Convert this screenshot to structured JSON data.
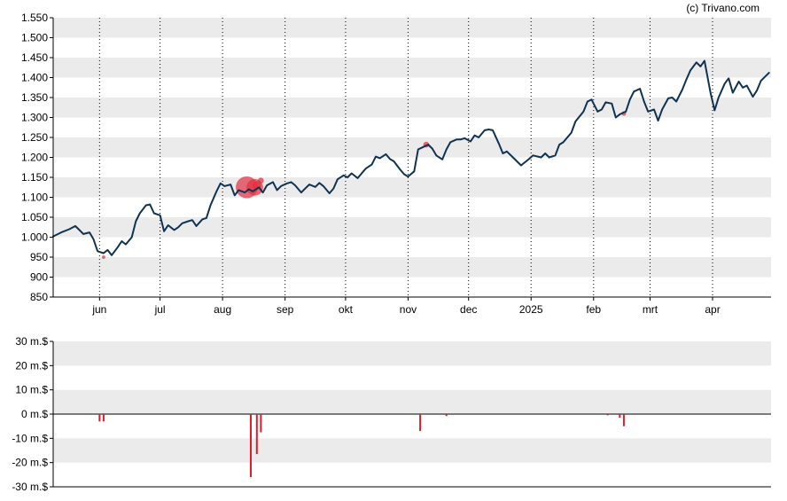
{
  "credit": "(c) Trivano.com",
  "colors": {
    "band": "#ebebeb",
    "line": "#0f3350",
    "marker": "#e03040",
    "bar": "#e01b2a",
    "axis": "#000000"
  },
  "chart_data": [
    {
      "type": "line",
      "ylim": [
        850,
        1550
      ],
      "ytick_values": [
        850,
        900,
        950,
        1000,
        1050,
        1100,
        1150,
        1200,
        1250,
        1300,
        1350,
        1400,
        1450,
        1500,
        1550
      ],
      "ytick_labels": [
        "850",
        "900",
        "950",
        "1.000",
        "1.050",
        "1.100",
        "1.150",
        "1.200",
        "1.250",
        "1.300",
        "1.350",
        "1.400",
        "1.450",
        "1.500",
        "1.550"
      ],
      "xlim": [
        "2024-05-09",
        "2025-04-30"
      ],
      "xtick_dates": [
        "2024-06-01",
        "2024-07-01",
        "2024-08-01",
        "2024-09-01",
        "2024-10-01",
        "2024-11-01",
        "2024-12-01",
        "2025-01-01",
        "2025-02-01",
        "2025-03-01",
        "2025-04-01"
      ],
      "xtick_labels": [
        "jun",
        "jul",
        "aug",
        "sep",
        "okt",
        "nov",
        "dec",
        "2025",
        "feb",
        "mrt",
        "apr"
      ],
      "grid": "vertical dotted at month starts; alternating horizontal bands",
      "series": [
        {
          "points": [
            [
              "2024-05-09",
              1002
            ],
            [
              "2024-05-13",
              1012
            ],
            [
              "2024-05-17",
              1020
            ],
            [
              "2024-05-20",
              1028
            ],
            [
              "2024-05-22",
              1018
            ],
            [
              "2024-05-24",
              1008
            ],
            [
              "2024-05-27",
              1012
            ],
            [
              "2024-05-29",
              995
            ],
            [
              "2024-05-31",
              965
            ],
            [
              "2024-06-03",
              960
            ],
            [
              "2024-06-05",
              968
            ],
            [
              "2024-06-07",
              955
            ],
            [
              "2024-06-10",
              975
            ],
            [
              "2024-06-12",
              990
            ],
            [
              "2024-06-14",
              982
            ],
            [
              "2024-06-17",
              1000
            ],
            [
              "2024-06-19",
              1040
            ],
            [
              "2024-06-21",
              1060
            ],
            [
              "2024-06-24",
              1080
            ],
            [
              "2024-06-26",
              1082
            ],
            [
              "2024-06-28",
              1060
            ],
            [
              "2024-07-01",
              1055
            ],
            [
              "2024-07-03",
              1015
            ],
            [
              "2024-07-05",
              1030
            ],
            [
              "2024-07-08",
              1018
            ],
            [
              "2024-07-10",
              1025
            ],
            [
              "2024-07-12",
              1035
            ],
            [
              "2024-07-15",
              1040
            ],
            [
              "2024-07-17",
              1043
            ],
            [
              "2024-07-19",
              1028
            ],
            [
              "2024-07-22",
              1045
            ],
            [
              "2024-07-24",
              1048
            ],
            [
              "2024-07-26",
              1080
            ],
            [
              "2024-07-29",
              1115
            ],
            [
              "2024-07-31",
              1135
            ],
            [
              "2024-08-02",
              1128
            ],
            [
              "2024-08-05",
              1132
            ],
            [
              "2024-08-07",
              1105
            ],
            [
              "2024-08-09",
              1118
            ],
            [
              "2024-08-12",
              1112
            ],
            [
              "2024-08-14",
              1120
            ],
            [
              "2024-08-16",
              1115
            ],
            [
              "2024-08-19",
              1125
            ],
            [
              "2024-08-21",
              1112
            ],
            [
              "2024-08-23",
              1130
            ],
            [
              "2024-08-26",
              1138
            ],
            [
              "2024-08-28",
              1118
            ],
            [
              "2024-08-30",
              1128
            ],
            [
              "2024-09-02",
              1135
            ],
            [
              "2024-09-04",
              1138
            ],
            [
              "2024-09-06",
              1130
            ],
            [
              "2024-09-09",
              1112
            ],
            [
              "2024-09-11",
              1122
            ],
            [
              "2024-09-13",
              1132
            ],
            [
              "2024-09-16",
              1126
            ],
            [
              "2024-09-18",
              1136
            ],
            [
              "2024-09-20",
              1128
            ],
            [
              "2024-09-23",
              1110
            ],
            [
              "2024-09-25",
              1122
            ],
            [
              "2024-09-27",
              1145
            ],
            [
              "2024-09-30",
              1155
            ],
            [
              "2024-10-02",
              1150
            ],
            [
              "2024-10-04",
              1160
            ],
            [
              "2024-10-07",
              1148
            ],
            [
              "2024-10-09",
              1160
            ],
            [
              "2024-10-11",
              1172
            ],
            [
              "2024-10-14",
              1182
            ],
            [
              "2024-10-16",
              1202
            ],
            [
              "2024-10-18",
              1198
            ],
            [
              "2024-10-21",
              1208
            ],
            [
              "2024-10-23",
              1196
            ],
            [
              "2024-10-25",
              1190
            ],
            [
              "2024-10-28",
              1170
            ],
            [
              "2024-10-30",
              1158
            ],
            [
              "2024-11-01",
              1152
            ],
            [
              "2024-11-04",
              1165
            ],
            [
              "2024-11-06",
              1220
            ],
            [
              "2024-11-08",
              1225
            ],
            [
              "2024-11-11",
              1232
            ],
            [
              "2024-11-13",
              1222
            ],
            [
              "2024-11-15",
              1205
            ],
            [
              "2024-11-18",
              1195
            ],
            [
              "2024-11-20",
              1220
            ],
            [
              "2024-11-22",
              1238
            ],
            [
              "2024-11-25",
              1245
            ],
            [
              "2024-11-27",
              1245
            ],
            [
              "2024-11-29",
              1248
            ],
            [
              "2024-12-02",
              1240
            ],
            [
              "2024-12-04",
              1255
            ],
            [
              "2024-12-06",
              1250
            ],
            [
              "2024-12-09",
              1268
            ],
            [
              "2024-12-11",
              1270
            ],
            [
              "2024-12-13",
              1268
            ],
            [
              "2024-12-16",
              1235
            ],
            [
              "2024-12-18",
              1210
            ],
            [
              "2024-12-20",
              1215
            ],
            [
              "2024-12-23",
              1200
            ],
            [
              "2024-12-27",
              1180
            ],
            [
              "2024-12-30",
              1192
            ],
            [
              "2025-01-02",
              1205
            ],
            [
              "2025-01-06",
              1200
            ],
            [
              "2025-01-08",
              1210
            ],
            [
              "2025-01-10",
              1200
            ],
            [
              "2025-01-13",
              1205
            ],
            [
              "2025-01-15",
              1232
            ],
            [
              "2025-01-17",
              1238
            ],
            [
              "2025-01-21",
              1262
            ],
            [
              "2025-01-23",
              1290
            ],
            [
              "2025-01-27",
              1315
            ],
            [
              "2025-01-29",
              1340
            ],
            [
              "2025-01-31",
              1345
            ],
            [
              "2025-02-03",
              1315
            ],
            [
              "2025-02-05",
              1320
            ],
            [
              "2025-02-07",
              1338
            ],
            [
              "2025-02-10",
              1335
            ],
            [
              "2025-02-12",
              1300
            ],
            [
              "2025-02-14",
              1308
            ],
            [
              "2025-02-17",
              1315
            ],
            [
              "2025-02-19",
              1345
            ],
            [
              "2025-02-21",
              1365
            ],
            [
              "2025-02-24",
              1372
            ],
            [
              "2025-02-26",
              1340
            ],
            [
              "2025-02-28",
              1315
            ],
            [
              "2025-03-03",
              1320
            ],
            [
              "2025-03-05",
              1292
            ],
            [
              "2025-03-07",
              1320
            ],
            [
              "2025-03-10",
              1348
            ],
            [
              "2025-03-12",
              1350
            ],
            [
              "2025-03-14",
              1340
            ],
            [
              "2025-03-17",
              1370
            ],
            [
              "2025-03-19",
              1395
            ],
            [
              "2025-03-21",
              1418
            ],
            [
              "2025-03-24",
              1438
            ],
            [
              "2025-03-26",
              1428
            ],
            [
              "2025-03-28",
              1442
            ],
            [
              "2025-03-31",
              1362
            ],
            [
              "2025-04-02",
              1318
            ],
            [
              "2025-04-04",
              1350
            ],
            [
              "2025-04-07",
              1385
            ],
            [
              "2025-04-09",
              1398
            ],
            [
              "2025-04-11",
              1362
            ],
            [
              "2025-04-14",
              1390
            ],
            [
              "2025-04-16",
              1375
            ],
            [
              "2025-04-18",
              1380
            ],
            [
              "2025-04-21",
              1352
            ],
            [
              "2025-04-23",
              1368
            ],
            [
              "2025-04-25",
              1392
            ],
            [
              "2025-04-29",
              1412
            ]
          ]
        }
      ],
      "markers": [
        {
          "date": "2024-06-03",
          "value": 950,
          "size": 1
        },
        {
          "date": "2024-08-13",
          "value": 1125,
          "size": 8
        },
        {
          "date": "2024-08-17",
          "value": 1125,
          "size": 6
        },
        {
          "date": "2024-08-18",
          "value": 1130,
          "size": 3
        },
        {
          "date": "2024-08-20",
          "value": 1142,
          "size": 2
        },
        {
          "date": "2024-11-10",
          "value": 1232,
          "size": 2
        },
        {
          "date": "2025-02-16",
          "value": 1310,
          "size": 1.5
        }
      ]
    },
    {
      "type": "bar",
      "ylim": [
        -30,
        30
      ],
      "ytick_values": [
        -30,
        -20,
        -10,
        0,
        10,
        20,
        30
      ],
      "ytick_labels": [
        "-30 m.$",
        "-20 m.$",
        "-10 m.$",
        "0 m.$",
        "10 m.$",
        "20 m.$",
        "30 m.$"
      ],
      "xlim": [
        "2024-05-09",
        "2025-04-30"
      ],
      "bars": [
        {
          "date": "2024-06-01",
          "value": -3
        },
        {
          "date": "2024-06-03",
          "value": -3
        },
        {
          "date": "2024-08-15",
          "value": -26
        },
        {
          "date": "2024-08-18",
          "value": -16.5
        },
        {
          "date": "2024-08-20",
          "value": -7.5
        },
        {
          "date": "2024-11-07",
          "value": -7
        },
        {
          "date": "2024-11-20",
          "value": -0.8
        },
        {
          "date": "2025-02-08",
          "value": -0.5
        },
        {
          "date": "2025-02-14",
          "value": -1.5
        },
        {
          "date": "2025-02-16",
          "value": -5
        }
      ]
    }
  ]
}
